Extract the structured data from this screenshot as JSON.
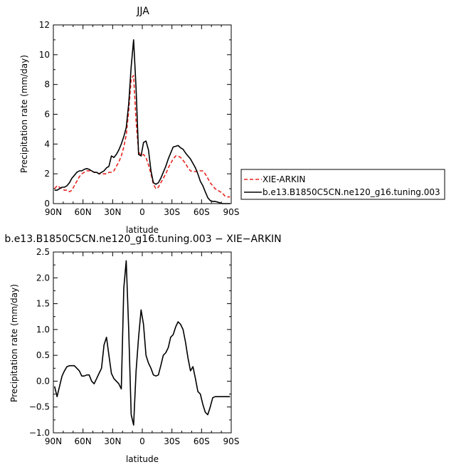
{
  "chart_data": [
    {
      "type": "line",
      "title": "JJA",
      "xlabel": "latitude",
      "ylabel": "Precipitation rate (mm/day)",
      "xlim": [
        90,
        -90
      ],
      "ylim": [
        0,
        12
      ],
      "x_ticks": [
        90,
        60,
        30,
        0,
        -30,
        -60,
        -90
      ],
      "x_tick_labels": [
        "90N",
        "60N",
        "30N",
        "0",
        "30S",
        "60S",
        "90S"
      ],
      "y_ticks": [
        0,
        2,
        4,
        6,
        8,
        10,
        12
      ],
      "y_tick_labels": [
        "0",
        "2",
        "4",
        "6",
        "8",
        "10",
        "12"
      ],
      "grid": false,
      "legend_position": "right",
      "series": [
        {
          "name": "XIE-ARKIN",
          "color": "#e8241f",
          "dash": "dashed",
          "x": [
            88.75,
            86.25,
            83.75,
            81.25,
            78.75,
            76.25,
            73.75,
            71.25,
            68.75,
            66.25,
            63.75,
            61.25,
            58.75,
            56.25,
            53.75,
            51.25,
            48.75,
            46.25,
            43.75,
            41.25,
            38.75,
            36.25,
            33.75,
            31.25,
            28.75,
            26.25,
            23.75,
            21.25,
            18.75,
            16.25,
            13.75,
            11.25,
            8.75,
            6.25,
            3.75,
            1.25,
            -1.25,
            -3.75,
            -6.25,
            -8.75,
            -11.25,
            -13.75,
            -16.25,
            -18.75,
            -21.25,
            -23.75,
            -26.25,
            -28.75,
            -31.25,
            -33.75,
            -36.25,
            -38.75,
            -41.25,
            -43.75,
            -46.25,
            -48.75,
            -51.25,
            -53.75,
            -56.25,
            -58.75,
            -61.25,
            -63.75,
            -66.25,
            -68.75,
            -71.25,
            -73.75,
            -76.25,
            -78.75,
            -81.25,
            -83.75,
            -86.25,
            -88.75
          ],
          "y": [
            1.0,
            1.2,
            1.1,
            1.0,
            0.9,
            0.9,
            0.8,
            0.9,
            1.2,
            1.5,
            1.8,
            2.0,
            2.1,
            2.2,
            2.2,
            2.2,
            2.1,
            2.1,
            2.0,
            2.0,
            2.0,
            2.0,
            2.1,
            2.1,
            2.2,
            2.5,
            2.8,
            3.2,
            3.8,
            4.6,
            6.2,
            8.4,
            8.6,
            5.5,
            3.5,
            3.2,
            3.3,
            3.1,
            2.6,
            2.0,
            1.3,
            1.0,
            1.1,
            1.4,
            1.7,
            2.0,
            2.4,
            2.7,
            3.0,
            3.2,
            3.2,
            3.1,
            2.9,
            2.7,
            2.4,
            2.2,
            2.15,
            2.15,
            2.2,
            2.2,
            2.2,
            2.0,
            1.7,
            1.4,
            1.2,
            1.0,
            0.9,
            0.8,
            0.7,
            0.5,
            0.45,
            0.45
          ]
        },
        {
          "name": "b.e13.B1850C5CN.ne120_g16.tuning.003",
          "color": "#000000",
          "dash": "solid",
          "x": [
            88.75,
            86.25,
            83.75,
            81.25,
            78.75,
            76.25,
            73.75,
            71.25,
            68.75,
            66.25,
            63.75,
            61.25,
            58.75,
            56.25,
            53.75,
            51.25,
            48.75,
            46.25,
            43.75,
            41.25,
            38.75,
            36.25,
            33.75,
            31.25,
            28.75,
            26.25,
            23.75,
            21.25,
            18.75,
            16.25,
            13.75,
            11.25,
            8.75,
            6.25,
            3.75,
            1.25,
            -1.25,
            -3.75,
            -6.25,
            -8.75,
            -11.25,
            -13.75,
            -16.25,
            -18.75,
            -21.25,
            -23.75,
            -26.25,
            -28.75,
            -31.25,
            -33.75,
            -36.25,
            -38.75,
            -41.25,
            -43.75,
            -46.25,
            -48.75,
            -51.25,
            -53.75,
            -56.25,
            -58.75,
            -61.25,
            -63.75,
            -66.25,
            -68.75,
            -71.25,
            -73.75,
            -76.25,
            -78.75,
            -81.25,
            -83.75,
            -86.25,
            -88.75
          ],
          "y": [
            0.9,
            0.9,
            1.0,
            1.1,
            1.1,
            1.2,
            1.4,
            1.7,
            1.9,
            2.1,
            2.2,
            2.2,
            2.3,
            2.35,
            2.3,
            2.2,
            2.1,
            2.1,
            2.0,
            2.1,
            2.2,
            2.4,
            2.5,
            3.2,
            3.1,
            3.3,
            3.6,
            4.0,
            4.5,
            5.1,
            6.7,
            9.2,
            11.0,
            7.7,
            3.3,
            3.2,
            4.1,
            4.2,
            3.6,
            2.2,
            1.4,
            1.3,
            1.4,
            1.7,
            2.1,
            2.5,
            3.0,
            3.4,
            3.8,
            3.85,
            3.9,
            3.75,
            3.65,
            3.4,
            3.2,
            3.0,
            2.7,
            2.4,
            2.0,
            1.5,
            1.2,
            0.8,
            0.4,
            0.2,
            0.15,
            0.15,
            0.1,
            0.05,
            0.0,
            0.0,
            0.0,
            0.0
          ]
        }
      ]
    },
    {
      "type": "line",
      "title": "b.e13.B1850C5CN.ne120_g16.tuning.003 − XIE−ARKIN",
      "xlabel": "latitude",
      "ylabel": "Precipitation rate (mm/day)",
      "xlim": [
        90,
        -90
      ],
      "ylim": [
        -1.0,
        2.5
      ],
      "x_ticks": [
        90,
        60,
        30,
        0,
        -30,
        -60,
        -90
      ],
      "x_tick_labels": [
        "90N",
        "60N",
        "30N",
        "0",
        "30S",
        "60S",
        "90S"
      ],
      "y_ticks": [
        -1.0,
        -0.5,
        0.0,
        0.5,
        1.0,
        1.5,
        2.0,
        2.5
      ],
      "y_tick_labels": [
        "−1.0",
        "−0.5",
        "0.0",
        "0.5",
        "1.0",
        "1.5",
        "2.0",
        "2.5"
      ],
      "grid": false,
      "series": [
        {
          "color": "#000000",
          "dash": "solid",
          "x": [
            88.75,
            86.25,
            83.75,
            81.25,
            78.75,
            76.25,
            73.75,
            71.25,
            68.75,
            66.25,
            63.75,
            61.25,
            58.75,
            56.25,
            53.75,
            51.25,
            48.75,
            46.25,
            43.75,
            41.25,
            38.75,
            36.25,
            33.75,
            31.25,
            28.75,
            26.25,
            23.75,
            21.25,
            18.75,
            16.25,
            13.75,
            11.25,
            8.75,
            6.25,
            3.75,
            1.25,
            -1.25,
            -3.75,
            -6.25,
            -8.75,
            -11.25,
            -13.75,
            -16.25,
            -18.75,
            -21.25,
            -23.75,
            -26.25,
            -28.75,
            -31.25,
            -33.75,
            -36.25,
            -38.75,
            -41.25,
            -43.75,
            -46.25,
            -48.75,
            -51.25,
            -53.75,
            -56.25,
            -58.75,
            -61.25,
            -63.75,
            -66.25,
            -68.75,
            -71.25,
            -73.75,
            -76.25,
            -78.75,
            -81.25,
            -83.75,
            -86.25,
            -88.75
          ],
          "y": [
            -0.1,
            -0.3,
            -0.1,
            0.1,
            0.2,
            0.28,
            0.3,
            0.3,
            0.3,
            0.25,
            0.2,
            0.1,
            0.1,
            0.12,
            0.12,
            0.0,
            -0.05,
            0.05,
            0.15,
            0.25,
            0.7,
            0.85,
            0.5,
            0.15,
            0.05,
            0.0,
            -0.05,
            -0.15,
            1.8,
            2.33,
            1.0,
            -0.65,
            -0.85,
            0.2,
            0.85,
            1.38,
            1.1,
            0.5,
            0.35,
            0.25,
            0.12,
            0.1,
            0.12,
            0.3,
            0.5,
            0.55,
            0.65,
            0.85,
            0.9,
            1.05,
            1.15,
            1.1,
            1.0,
            0.75,
            0.45,
            0.2,
            0.28,
            0.05,
            -0.2,
            -0.25,
            -0.45,
            -0.6,
            -0.65,
            -0.5,
            -0.32,
            -0.3,
            -0.3,
            -0.3,
            -0.3,
            -0.3,
            -0.3,
            -0.3
          ]
        }
      ]
    }
  ]
}
